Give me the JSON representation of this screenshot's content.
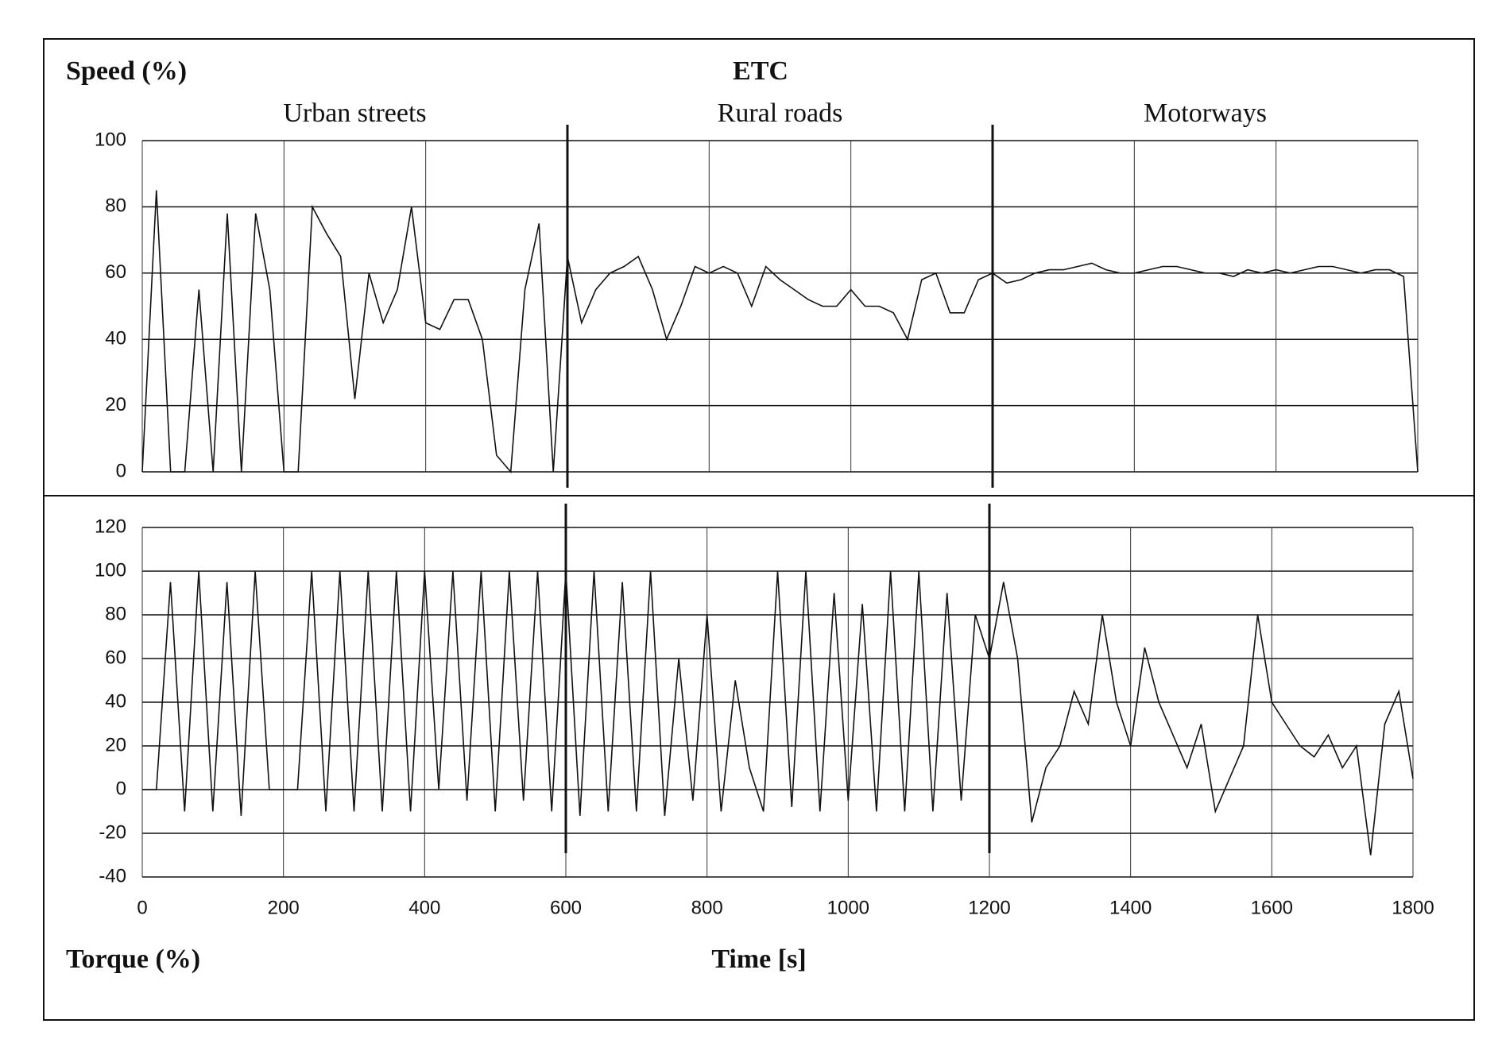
{
  "chart_data": [
    {
      "type": "line",
      "title": "ETC",
      "ylabel": "Speed (%)",
      "sections": [
        {
          "label": "Urban streets",
          "start": 0,
          "end": 600
        },
        {
          "label": "Rural roads",
          "start": 600,
          "end": 1200
        },
        {
          "label": "Motorways",
          "start": 1200,
          "end": 1800
        }
      ],
      "xlim": [
        0,
        1800
      ],
      "ylim": [
        0,
        100
      ],
      "yticks": [
        0,
        20,
        40,
        60,
        80,
        100
      ],
      "grid": true,
      "x": [
        0,
        20,
        40,
        60,
        80,
        100,
        120,
        140,
        160,
        180,
        200,
        220,
        240,
        260,
        280,
        300,
        320,
        340,
        360,
        380,
        400,
        420,
        440,
        460,
        480,
        500,
        520,
        540,
        560,
        580,
        600,
        620,
        640,
        660,
        680,
        700,
        720,
        740,
        760,
        780,
        800,
        820,
        840,
        860,
        880,
        900,
        920,
        940,
        960,
        980,
        1000,
        1020,
        1040,
        1060,
        1080,
        1100,
        1120,
        1140,
        1160,
        1180,
        1200,
        1220,
        1240,
        1260,
        1280,
        1300,
        1320,
        1340,
        1360,
        1380,
        1400,
        1420,
        1440,
        1460,
        1480,
        1500,
        1520,
        1540,
        1560,
        1580,
        1600,
        1620,
        1640,
        1660,
        1680,
        1700,
        1720,
        1740,
        1760,
        1780,
        1800
      ],
      "series": [
        {
          "name": "Speed",
          "color": "#111111",
          "values": [
            0,
            85,
            0,
            0,
            55,
            0,
            78,
            0,
            78,
            55,
            0,
            0,
            80,
            72,
            65,
            22,
            60,
            45,
            55,
            80,
            45,
            43,
            52,
            52,
            40,
            5,
            0,
            55,
            75,
            0,
            65,
            45,
            55,
            60,
            62,
            65,
            55,
            40,
            50,
            62,
            60,
            62,
            60,
            50,
            62,
            58,
            55,
            52,
            50,
            50,
            55,
            50,
            50,
            48,
            40,
            58,
            60,
            48,
            48,
            58,
            60,
            57,
            58,
            60,
            61,
            61,
            62,
            63,
            61,
            60,
            60,
            61,
            62,
            62,
            61,
            60,
            60,
            59,
            61,
            60,
            61,
            60,
            61,
            62,
            62,
            61,
            60,
            61,
            61,
            59,
            0
          ]
        }
      ]
    },
    {
      "type": "line",
      "ylabel": "Torque (%)",
      "xlabel": "Time [s]",
      "xlim": [
        0,
        1800
      ],
      "xticks": [
        0,
        200,
        400,
        600,
        800,
        1000,
        1200,
        1400,
        1600,
        1800
      ],
      "ylim": [
        -40,
        120
      ],
      "yticks": [
        -40,
        -20,
        0,
        20,
        40,
        60,
        80,
        100,
        120
      ],
      "grid": true,
      "x": [
        0,
        20,
        40,
        60,
        80,
        100,
        120,
        140,
        160,
        180,
        200,
        220,
        240,
        260,
        280,
        300,
        320,
        340,
        360,
        380,
        400,
        420,
        440,
        460,
        480,
        500,
        520,
        540,
        560,
        580,
        600,
        620,
        640,
        660,
        680,
        700,
        720,
        740,
        760,
        780,
        800,
        820,
        840,
        860,
        880,
        900,
        920,
        940,
        960,
        980,
        1000,
        1020,
        1040,
        1060,
        1080,
        1100,
        1120,
        1140,
        1160,
        1180,
        1200,
        1220,
        1240,
        1260,
        1280,
        1300,
        1320,
        1340,
        1360,
        1380,
        1400,
        1420,
        1440,
        1460,
        1480,
        1500,
        1520,
        1540,
        1560,
        1580,
        1600,
        1620,
        1640,
        1660,
        1680,
        1700,
        1720,
        1740,
        1760,
        1780,
        1800
      ],
      "series": [
        {
          "name": "Torque",
          "color": "#111111",
          "values": [
            0,
            0,
            95,
            -10,
            100,
            -10,
            95,
            -12,
            100,
            0,
            0,
            0,
            100,
            -10,
            100,
            -10,
            100,
            -10,
            100,
            -10,
            100,
            0,
            100,
            -5,
            100,
            -10,
            100,
            -5,
            100,
            -10,
            100,
            -12,
            100,
            -10,
            95,
            -10,
            100,
            -12,
            60,
            -5,
            80,
            -10,
            50,
            10,
            -10,
            100,
            -8,
            100,
            -10,
            90,
            -5,
            85,
            -10,
            100,
            -10,
            100,
            -10,
            90,
            -5,
            80,
            60,
            95,
            60,
            -15,
            10,
            20,
            45,
            30,
            80,
            40,
            20,
            65,
            40,
            25,
            10,
            30,
            -10,
            5,
            20,
            80,
            40,
            30,
            20,
            15,
            25,
            10,
            20,
            -30,
            30,
            45,
            5
          ]
        }
      ]
    }
  ]
}
